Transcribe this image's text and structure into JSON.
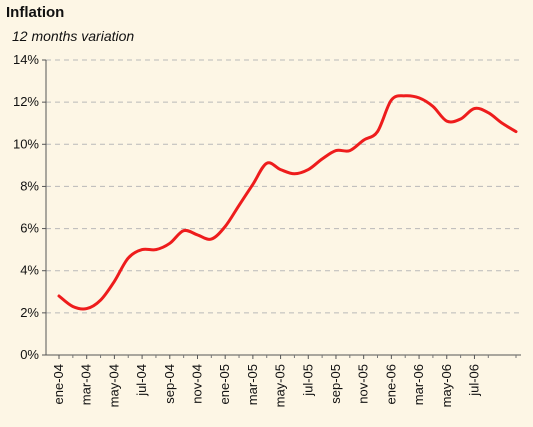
{
  "chart_data": {
    "type": "line",
    "title": "Inflation",
    "subtitle": "12 months variation",
    "xlabel": "",
    "ylabel": "",
    "ylim": [
      0,
      14
    ],
    "y_ticks": [
      "0%",
      "2%",
      "4%",
      "6%",
      "8%",
      "10%",
      "12%",
      "14%"
    ],
    "y_tick_values": [
      0,
      2,
      4,
      6,
      8,
      10,
      12,
      14
    ],
    "grid": "horizontal dashed",
    "legend": "none",
    "line_color": "#ee1c1c",
    "x_tick_labels": [
      "ene-04",
      "mar-04",
      "may-04",
      "jul-04",
      "sep-04",
      "nov-04",
      "ene-05",
      "mar-05",
      "may-05",
      "jul-05",
      "sep-05",
      "nov-05",
      "ene-06",
      "mar-06",
      "may-06",
      "jul-06"
    ],
    "series": [
      {
        "values": [
          2.8,
          2.3,
          2.2,
          2.6,
          3.5,
          4.6,
          5.0,
          5.0,
          5.3,
          5.9,
          5.7,
          5.5,
          6.1,
          7.1,
          8.1,
          9.1,
          8.8,
          8.6,
          8.8,
          9.3,
          9.7,
          9.7,
          10.2,
          10.6,
          12.1,
          12.3,
          12.2,
          11.8,
          11.1,
          11.2,
          11.7,
          11.5,
          11.0,
          10.6
        ]
      }
    ]
  }
}
